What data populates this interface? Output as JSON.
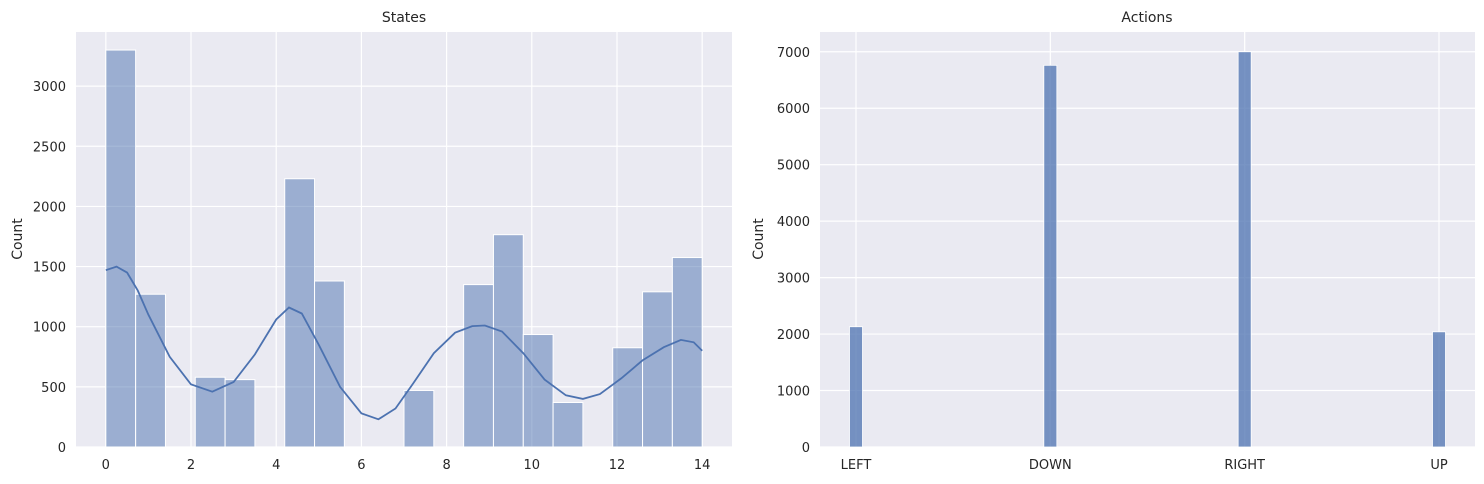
{
  "chart_data": [
    {
      "type": "histogram",
      "title": "States",
      "xlabel": "",
      "ylabel": "Count",
      "xlim": [
        -0.7,
        14.7
      ],
      "ylim": [
        0,
        3450
      ],
      "xticks": [
        0,
        2,
        4,
        6,
        8,
        10,
        12,
        14
      ],
      "yticks": [
        0,
        500,
        1000,
        1500,
        2000,
        2500,
        3000
      ],
      "bin_edges": [
        0,
        0.7,
        1.4,
        2.1,
        2.8,
        3.5,
        4.2,
        4.9,
        5.6,
        6.3,
        7.0,
        7.7,
        8.4,
        9.1,
        9.8,
        10.5,
        11.2,
        11.9,
        12.6,
        13.3,
        14.0
      ],
      "values": [
        3300,
        1270,
        0,
        580,
        560,
        0,
        2230,
        1380,
        0,
        0,
        470,
        0,
        1350,
        1765,
        935,
        370,
        0,
        825,
        1290,
        1575
      ],
      "kde": {
        "x": [
          0,
          0.25,
          0.5,
          0.75,
          1.0,
          1.5,
          2.0,
          2.5,
          3.0,
          3.5,
          4.0,
          4.3,
          4.6,
          5.0,
          5.5,
          6.0,
          6.4,
          6.8,
          7.2,
          7.7,
          8.2,
          8.6,
          8.9,
          9.3,
          9.8,
          10.3,
          10.8,
          11.2,
          11.6,
          12.1,
          12.6,
          13.1,
          13.5,
          13.8,
          14.0
        ],
        "y": [
          1470,
          1500,
          1450,
          1300,
          1100,
          750,
          520,
          460,
          540,
          770,
          1060,
          1160,
          1110,
          850,
          500,
          280,
          230,
          320,
          520,
          780,
          950,
          1005,
          1010,
          960,
          780,
          560,
          430,
          400,
          440,
          570,
          720,
          830,
          890,
          870,
          800
        ]
      },
      "colors": {
        "bar": "#4c72b0",
        "line": "#4c72b0"
      }
    },
    {
      "type": "bar",
      "title": "Actions",
      "xlabel": "",
      "ylabel": "Count",
      "categories": [
        "LEFT",
        "DOWN",
        "RIGHT",
        "UP"
      ],
      "values": [
        2130,
        6760,
        7000,
        2040
      ],
      "ylim": [
        0,
        7350
      ],
      "yticks": [
        0,
        1000,
        2000,
        3000,
        4000,
        5000,
        6000,
        7000
      ],
      "colors": {
        "bar": "#4c72b0"
      }
    }
  ]
}
